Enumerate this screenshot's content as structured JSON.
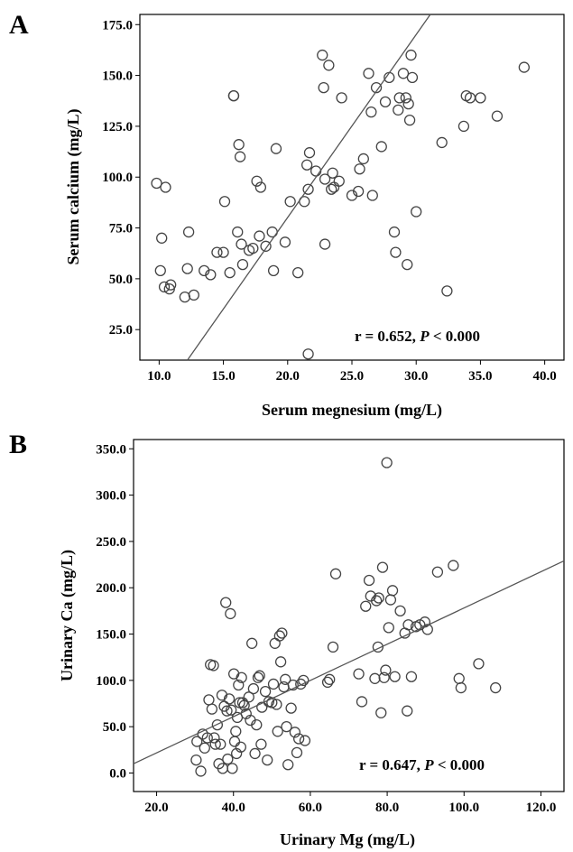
{
  "chart_data": [
    {
      "type": "scatter",
      "panel_label": "A",
      "xlabel": "Serum megnesium (mg/L)",
      "ylabel": "Serum calcium (mg/L)",
      "xlim": [
        8.5,
        41.5
      ],
      "ylim": [
        10,
        180
      ],
      "x_ticks": [
        "10.0",
        "15.0",
        "20.0",
        "25.0",
        "30.0",
        "35.0",
        "40.0"
      ],
      "y_ticks": [
        "25.0",
        "50.0",
        "75.0",
        "100.0",
        "125.0",
        "150.0",
        "175.0"
      ],
      "x_tick_values": [
        10,
        15,
        20,
        25,
        30,
        35,
        40
      ],
      "y_tick_values": [
        25,
        50,
        75,
        100,
        125,
        150,
        175
      ],
      "annotation_r": "r = 0.652, ",
      "annotation_p": "P",
      "annotation_rest": " < 0.000",
      "fit_line": {
        "x": [
          12.2,
          31.1
        ],
        "y": [
          10,
          180
        ]
      },
      "points": [
        [
          9.8,
          97
        ],
        [
          10.5,
          95
        ],
        [
          10.2,
          70
        ],
        [
          10.1,
          54
        ],
        [
          10.4,
          46
        ],
        [
          10.9,
          47
        ],
        [
          10.8,
          45
        ],
        [
          12.0,
          41
        ],
        [
          12.2,
          55
        ],
        [
          12.3,
          73
        ],
        [
          12.7,
          42
        ],
        [
          13.5,
          54
        ],
        [
          14.0,
          52
        ],
        [
          14.5,
          63
        ],
        [
          15.1,
          88
        ],
        [
          15.0,
          63
        ],
        [
          15.5,
          53
        ],
        [
          15.8,
          140
        ],
        [
          16.2,
          116
        ],
        [
          16.3,
          110
        ],
        [
          16.1,
          73
        ],
        [
          16.4,
          67
        ],
        [
          16.5,
          57
        ],
        [
          17.0,
          64
        ],
        [
          17.3,
          65
        ],
        [
          17.6,
          98
        ],
        [
          17.8,
          71
        ],
        [
          17.9,
          95
        ],
        [
          18.3,
          66
        ],
        [
          18.8,
          73
        ],
        [
          18.9,
          54
        ],
        [
          19.1,
          114
        ],
        [
          19.8,
          68
        ],
        [
          20.2,
          88
        ],
        [
          20.8,
          53
        ],
        [
          21.3,
          88
        ],
        [
          21.7,
          112
        ],
        [
          21.5,
          106
        ],
        [
          21.6,
          94
        ],
        [
          22.2,
          103
        ],
        [
          22.7,
          160
        ],
        [
          22.8,
          144
        ],
        [
          22.9,
          67
        ],
        [
          22.9,
          99
        ],
        [
          23.2,
          155
        ],
        [
          23.4,
          94
        ],
        [
          23.5,
          102
        ],
        [
          23.6,
          95
        ],
        [
          24.0,
          98
        ],
        [
          24.2,
          139
        ],
        [
          25.0,
          91
        ],
        [
          25.5,
          93
        ],
        [
          25.6,
          104
        ],
        [
          25.9,
          109
        ],
        [
          26.3,
          151
        ],
        [
          26.6,
          91
        ],
        [
          26.5,
          132
        ],
        [
          26.9,
          144
        ],
        [
          27.3,
          115
        ],
        [
          27.6,
          137
        ],
        [
          27.9,
          149
        ],
        [
          28.3,
          73
        ],
        [
          28.4,
          63
        ],
        [
          28.6,
          133
        ],
        [
          28.7,
          139
        ],
        [
          29.0,
          151
        ],
        [
          29.2,
          139
        ],
        [
          29.3,
          57
        ],
        [
          29.5,
          128
        ],
        [
          29.4,
          136
        ],
        [
          29.7,
          149
        ],
        [
          29.6,
          160
        ],
        [
          30.0,
          83
        ],
        [
          32.0,
          117
        ],
        [
          32.4,
          44
        ],
        [
          33.7,
          125
        ],
        [
          33.9,
          140
        ],
        [
          34.2,
          139
        ],
        [
          35.0,
          139
        ],
        [
          36.3,
          130
        ],
        [
          38.4,
          154
        ],
        [
          21.6,
          13
        ],
        [
          15.8,
          140
        ]
      ]
    },
    {
      "type": "scatter",
      "panel_label": "B",
      "xlabel": "Urinary Mg (mg/L)",
      "ylabel": "Urinary Ca (mg/L)",
      "xlim": [
        14,
        126
      ],
      "ylim": [
        -20,
        360
      ],
      "x_ticks": [
        "20.0",
        "40.0",
        "60.0",
        "80.0",
        "100.0",
        "120.0"
      ],
      "y_ticks": [
        "0.0",
        "50.0",
        "100.0",
        "150.0",
        "200.0",
        "250.0",
        "300.0",
        "350.0"
      ],
      "x_tick_values": [
        20,
        40,
        60,
        80,
        100,
        120
      ],
      "y_tick_values": [
        0,
        50,
        100,
        150,
        200,
        250,
        300,
        350
      ],
      "annotation_r": "r = 0.647, ",
      "annotation_p": "P",
      "annotation_rest": " < 0.000",
      "fit_line": {
        "x": [
          14,
          126
        ],
        "y": [
          10,
          229
        ]
      },
      "points": [
        [
          30.3,
          14
        ],
        [
          30.5,
          34
        ],
        [
          31.5,
          2
        ],
        [
          32.0,
          42
        ],
        [
          32.5,
          27
        ],
        [
          33.2,
          38
        ],
        [
          33.6,
          79
        ],
        [
          34.0,
          117
        ],
        [
          34.4,
          69
        ],
        [
          34.8,
          116
        ],
        [
          35.0,
          38
        ],
        [
          35.3,
          31
        ],
        [
          35.8,
          52
        ],
        [
          36.2,
          10
        ],
        [
          36.6,
          31
        ],
        [
          37.0,
          84
        ],
        [
          37.2,
          5
        ],
        [
          37.6,
          72
        ],
        [
          38.0,
          184
        ],
        [
          38.3,
          67
        ],
        [
          38.5,
          15
        ],
        [
          38.9,
          80
        ],
        [
          39.2,
          172
        ],
        [
          39.4,
          68
        ],
        [
          39.7,
          5
        ],
        [
          40.1,
          107
        ],
        [
          40.3,
          34
        ],
        [
          40.6,
          45
        ],
        [
          40.8,
          21
        ],
        [
          41.0,
          60
        ],
        [
          41.3,
          95
        ],
        [
          41.6,
          76
        ],
        [
          41.9,
          28
        ],
        [
          42.1,
          103
        ],
        [
          42.4,
          76
        ],
        [
          42.8,
          73
        ],
        [
          43.3,
          64
        ],
        [
          44.0,
          82
        ],
        [
          44.4,
          57
        ],
        [
          44.8,
          140
        ],
        [
          45.2,
          91
        ],
        [
          45.6,
          21
        ],
        [
          46.0,
          52
        ],
        [
          46.4,
          103
        ],
        [
          46.8,
          105
        ],
        [
          47.2,
          31
        ],
        [
          47.4,
          71
        ],
        [
          48.3,
          88
        ],
        [
          48.8,
          14
        ],
        [
          49.2,
          77
        ],
        [
          50.0,
          76
        ],
        [
          50.4,
          96
        ],
        [
          50.8,
          140
        ],
        [
          51.2,
          74
        ],
        [
          51.5,
          45
        ],
        [
          52.0,
          148
        ],
        [
          52.3,
          120
        ],
        [
          52.6,
          151
        ],
        [
          53.1,
          93
        ],
        [
          53.5,
          101
        ],
        [
          53.8,
          50
        ],
        [
          54.2,
          9
        ],
        [
          55.0,
          70
        ],
        [
          55.5,
          95
        ],
        [
          56.0,
          44
        ],
        [
          56.5,
          22
        ],
        [
          57.0,
          37
        ],
        [
          57.5,
          96
        ],
        [
          58.2,
          100
        ],
        [
          58.6,
          35
        ],
        [
          64.5,
          98
        ],
        [
          65.0,
          101
        ],
        [
          65.9,
          136
        ],
        [
          66.6,
          215
        ],
        [
          72.6,
          107
        ],
        [
          73.4,
          77
        ],
        [
          74.4,
          180
        ],
        [
          75.3,
          208
        ],
        [
          75.7,
          191
        ],
        [
          76.8,
          102
        ],
        [
          77.2,
          186
        ],
        [
          77.6,
          136
        ],
        [
          77.8,
          189
        ],
        [
          78.4,
          65
        ],
        [
          78.8,
          222
        ],
        [
          79.2,
          103
        ],
        [
          79.6,
          111
        ],
        [
          79.9,
          335
        ],
        [
          80.4,
          157
        ],
        [
          80.9,
          187
        ],
        [
          81.4,
          197
        ],
        [
          82.0,
          104
        ],
        [
          83.4,
          175
        ],
        [
          84.6,
          151
        ],
        [
          85.2,
          67
        ],
        [
          85.5,
          160
        ],
        [
          86.3,
          104
        ],
        [
          87.5,
          158
        ],
        [
          88.5,
          160
        ],
        [
          89.8,
          163
        ],
        [
          90.5,
          155
        ],
        [
          93.1,
          217
        ],
        [
          97.2,
          224
        ],
        [
          98.7,
          102
        ],
        [
          99.2,
          92
        ],
        [
          103.8,
          118
        ],
        [
          108.2,
          92
        ]
      ]
    }
  ]
}
